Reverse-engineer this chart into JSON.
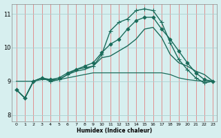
{
  "xlabel": "Humidex (Indice chaleur)",
  "xlim": [
    -0.5,
    23.5
  ],
  "ylim": [
    7.8,
    11.3
  ],
  "yticks": [
    8,
    9,
    10,
    11
  ],
  "xticks": [
    0,
    1,
    2,
    3,
    4,
    5,
    6,
    7,
    8,
    9,
    10,
    11,
    12,
    13,
    14,
    15,
    16,
    17,
    18,
    19,
    20,
    21,
    22,
    23
  ],
  "bg_color": "#d7efef",
  "line_color": "#1a6b5a",
  "grid_color_h": "#aad0d0",
  "grid_color_v": "#e08080",
  "lines": [
    {
      "x": [
        0,
        1,
        2,
        3,
        4,
        5,
        6,
        7,
        8,
        9,
        10,
        11,
        12,
        13,
        14,
        15,
        16,
        17,
        18,
        19,
        20,
        21,
        22,
        23
      ],
      "y": [
        8.75,
        8.5,
        9.0,
        9.1,
        9.05,
        9.1,
        9.25,
        9.35,
        9.45,
        9.55,
        9.85,
        10.1,
        10.25,
        10.55,
        10.8,
        10.9,
        10.9,
        10.55,
        10.25,
        9.9,
        9.55,
        9.25,
        9.05,
        9.0
      ],
      "marker": "D",
      "marker_size": 2.5,
      "linewidth": 1.0
    },
    {
      "x": [
        0,
        1,
        2,
        3,
        4,
        5,
        6,
        7,
        8,
        9,
        10,
        11,
        12,
        13,
        14,
        15,
        16,
        17,
        18,
        19,
        20,
        21,
        22,
        23
      ],
      "y": [
        8.75,
        8.5,
        9.0,
        9.1,
        9.0,
        9.05,
        9.2,
        9.35,
        9.4,
        9.45,
        9.8,
        10.5,
        10.75,
        10.85,
        11.1,
        11.15,
        11.1,
        10.75,
        10.15,
        9.65,
        9.35,
        9.1,
        8.95,
        9.0
      ],
      "marker": "+",
      "marker_size": 4,
      "linewidth": 1.0
    },
    {
      "x": [
        0,
        1,
        2,
        3,
        4,
        5,
        6,
        7,
        8,
        9,
        10,
        11,
        12,
        13,
        14,
        15,
        16,
        17,
        18,
        19,
        20,
        21,
        22,
        23
      ],
      "y": [
        8.75,
        8.5,
        9.0,
        9.1,
        9.0,
        9.05,
        9.2,
        9.3,
        9.35,
        9.45,
        9.7,
        9.75,
        9.9,
        10.05,
        10.25,
        10.55,
        10.6,
        10.3,
        9.8,
        9.55,
        9.45,
        9.3,
        9.2,
        9.0
      ],
      "marker": null,
      "marker_size": 0,
      "linewidth": 1.0
    },
    {
      "x": [
        0,
        1,
        2,
        3,
        4,
        5,
        6,
        7,
        8,
        9,
        10,
        11,
        12,
        13,
        14,
        15,
        16,
        17,
        18,
        19,
        20,
        21,
        22,
        23
      ],
      "y": [
        9.0,
        9.0,
        9.0,
        9.05,
        9.05,
        9.05,
        9.1,
        9.15,
        9.2,
        9.25,
        9.25,
        9.25,
        9.25,
        9.25,
        9.25,
        9.25,
        9.25,
        9.25,
        9.2,
        9.1,
        9.05,
        9.02,
        9.0,
        9.0
      ],
      "marker": null,
      "marker_size": 0,
      "linewidth": 0.9
    }
  ]
}
